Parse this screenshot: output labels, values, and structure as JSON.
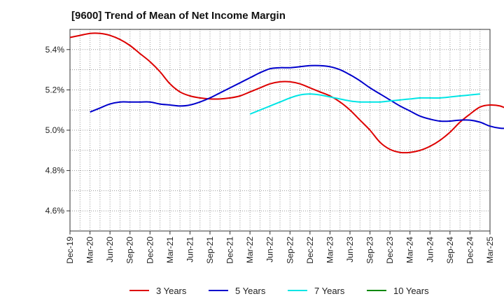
{
  "chart_data": {
    "type": "line",
    "title": "[9600]  Trend of Mean of Net Income Margin",
    "xlabel": "",
    "ylabel": "",
    "x_ticks": [
      "Dec-19",
      "Mar-20",
      "Jun-20",
      "Sep-20",
      "Dec-20",
      "Mar-21",
      "Jun-21",
      "Sep-21",
      "Dec-21",
      "Mar-22",
      "Jun-22",
      "Sep-22",
      "Dec-22",
      "Mar-23",
      "Jun-23",
      "Sep-23",
      "Dec-23",
      "Mar-24",
      "Jun-24",
      "Sep-24",
      "Dec-24",
      "Mar-25"
    ],
    "y_ticks": [
      "4.6%",
      "4.8%",
      "5.0%",
      "5.2%",
      "5.4%"
    ],
    "y_tick_values": [
      4.6,
      4.8,
      5.0,
      5.2,
      5.4
    ],
    "ylim": [
      4.5,
      5.5
    ],
    "grid": true,
    "legend_position": "bottom",
    "series": [
      {
        "name": "3 Years",
        "color": "#dd0000",
        "start": "Dec-19",
        "values": [
          5.46,
          5.47,
          5.48,
          5.48,
          5.47,
          5.45,
          5.42,
          5.38,
          5.34,
          5.29,
          5.23,
          5.19,
          5.17,
          5.16,
          5.155,
          5.155,
          5.16,
          5.17,
          5.19,
          5.21,
          5.23,
          5.24,
          5.24,
          5.23,
          5.21,
          5.19,
          5.17,
          5.14,
          5.1,
          5.05,
          5.0,
          4.94,
          4.905,
          4.89,
          4.89,
          4.9,
          4.92,
          4.95,
          4.99,
          5.04,
          5.08,
          5.115,
          5.125,
          5.12,
          5.1,
          5.08,
          5.065,
          5.05,
          5.035,
          5.02
        ]
      },
      {
        "name": "5 Years",
        "color": "#0000cc",
        "start": "Mar-20",
        "values": [
          5.09,
          5.11,
          5.13,
          5.14,
          5.14,
          5.14,
          5.14,
          5.13,
          5.125,
          5.12,
          5.125,
          5.14,
          5.16,
          5.185,
          5.21,
          5.235,
          5.26,
          5.285,
          5.305,
          5.31,
          5.31,
          5.315,
          5.32,
          5.32,
          5.315,
          5.3,
          5.275,
          5.245,
          5.21,
          5.18,
          5.15,
          5.12,
          5.095,
          5.07,
          5.055,
          5.045,
          5.045,
          5.05,
          5.05,
          5.04,
          5.02,
          5.01,
          5.01,
          5.015,
          5.015,
          5.015
        ]
      },
      {
        "name": "7 Years",
        "color": "#00e5e5",
        "start": "Mar-22",
        "values": [
          5.08,
          5.1,
          5.12,
          5.14,
          5.16,
          5.175,
          5.18,
          5.175,
          5.165,
          5.155,
          5.145,
          5.14,
          5.14,
          5.14,
          5.145,
          5.15,
          5.155,
          5.16,
          5.16,
          5.16,
          5.165,
          5.17,
          5.175,
          5.18
        ]
      },
      {
        "name": "10 Years",
        "color": "#008800",
        "start": "Dec-24",
        "values": []
      }
    ]
  }
}
